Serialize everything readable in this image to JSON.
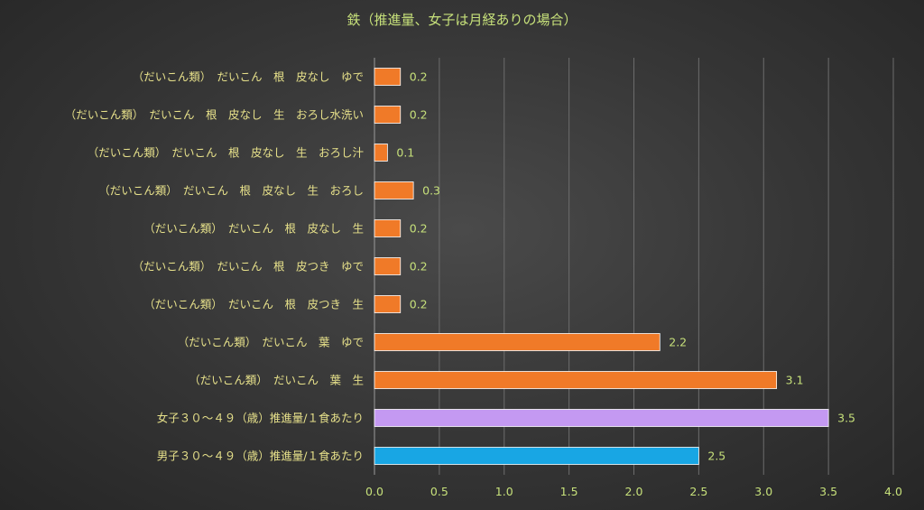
{
  "chart_data": {
    "type": "bar",
    "orientation": "horizontal",
    "title": "鉄（推進量、女子は月経ありの場合）",
    "xlabel": "",
    "ylabel": "",
    "xlim": [
      0,
      4
    ],
    "x_ticks": [
      "0.0",
      "0.5",
      "1.0",
      "1.5",
      "2.0",
      "2.5",
      "3.0",
      "3.5",
      "4.0"
    ],
    "grid": true,
    "legend": "none",
    "categories": [
      "（だいこん類）　だいこん　根　皮なし　ゆで",
      "（だいこん類）　だいこん　根　皮なし　生　おろし水洗い",
      "（だいこん類）　だいこん　根　皮なし　生　おろし汁",
      "（だいこん類）　だいこん　根　皮なし　生　おろし",
      "（だいこん類）　だいこん　根　皮なし　生",
      "（だいこん類）　だいこん　根　皮つき　ゆで",
      "（だいこん類）　だいこん　根　皮つき　生",
      "（だいこん類）　だいこん　葉　ゆで",
      "（だいこん類）　だいこん　葉　生",
      "女子３０～４９（歳）推進量/１食あたり",
      "男子３０～４９（歳）推進量/１食あたり"
    ],
    "values": [
      0.2,
      0.2,
      0.1,
      0.3,
      0.2,
      0.2,
      0.2,
      2.2,
      3.1,
      3.5,
      2.5
    ],
    "value_labels": [
      "0.2",
      "0.2",
      "0.1",
      "0.3",
      "0.2",
      "0.2",
      "0.2",
      "2.2",
      "3.1",
      "3.5",
      "2.5"
    ],
    "colors": [
      "#f07a28",
      "#f07a28",
      "#f07a28",
      "#f07a28",
      "#f07a28",
      "#f07a28",
      "#f07a28",
      "#f07a28",
      "#f07a28",
      "#c499f2",
      "#18a6e4"
    ],
    "bar_border_color": "#ffffff"
  }
}
